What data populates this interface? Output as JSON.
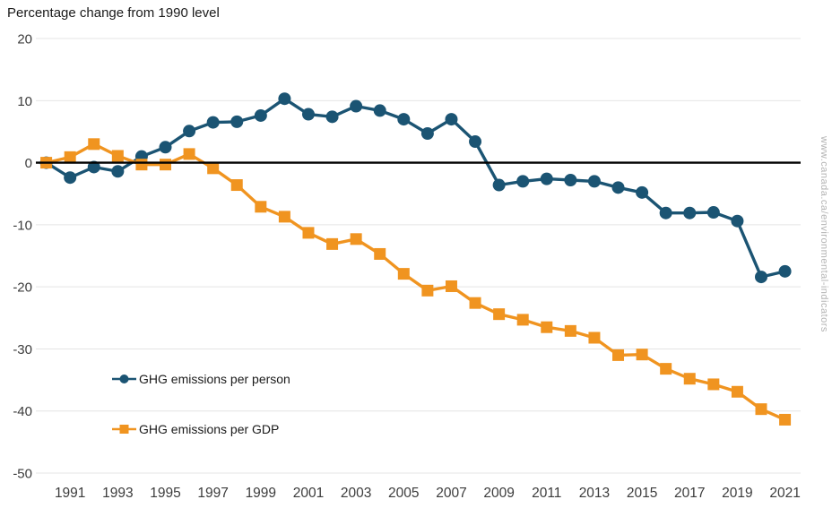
{
  "watermark": "www.canada.ca/environmental-indicators",
  "chart_data": {
    "type": "line",
    "title": "Percentage change from 1990 level",
    "xlabel": "",
    "ylabel": "Percentage change from 1990 level",
    "ylim": [
      -50,
      20
    ],
    "yticks": [
      20,
      10,
      0,
      -10,
      -20,
      -30,
      -40,
      -50
    ],
    "x_tick_labels": [
      "1991",
      "1993",
      "1995",
      "1997",
      "1999",
      "2001",
      "2003",
      "2005",
      "2007",
      "2009",
      "2011",
      "2013",
      "2015",
      "2017",
      "2019",
      "2021"
    ],
    "grid": true,
    "grid_color": "#e4e4e4",
    "zero_line_color": "#000000",
    "axis_label_color": "#3c3c3c",
    "legend_position": "inside lower-left",
    "years": [
      1990,
      1991,
      1992,
      1993,
      1994,
      1995,
      1996,
      1997,
      1998,
      1999,
      2000,
      2001,
      2002,
      2003,
      2004,
      2005,
      2006,
      2007,
      2008,
      2009,
      2010,
      2011,
      2012,
      2013,
      2014,
      2015,
      2016,
      2017,
      2018,
      2019,
      2020,
      2021
    ],
    "series": [
      {
        "name": "GHG emissions per person",
        "slug": "ghg-emissions-per-person",
        "color": "#1b5473",
        "marker": "circle",
        "values": [
          0.0,
          -2.4,
          -0.7,
          -1.4,
          1.0,
          2.5,
          5.1,
          6.5,
          6.6,
          7.6,
          10.3,
          7.8,
          7.4,
          9.1,
          8.4,
          7.0,
          4.7,
          7.0,
          3.4,
          -3.6,
          -3.0,
          -2.6,
          -2.8,
          -3.0,
          -4.0,
          -4.8,
          -8.1,
          -8.1,
          -8.0,
          -9.4,
          -18.4,
          -17.5
        ]
      },
      {
        "name": "GHG emissions per GDP",
        "slug": "ghg-emissions-per-gdp",
        "color": "#f09420",
        "marker": "square",
        "values": [
          0.0,
          0.9,
          3.0,
          1.1,
          -0.3,
          -0.3,
          1.4,
          -0.9,
          -3.6,
          -7.1,
          -8.7,
          -11.3,
          -13.1,
          -12.3,
          -14.7,
          -17.9,
          -20.6,
          -19.9,
          -22.6,
          -24.4,
          -25.3,
          -26.5,
          -27.1,
          -28.2,
          -31.0,
          -30.9,
          -33.2,
          -34.8,
          -35.7,
          -36.9,
          -39.7,
          -41.4
        ]
      }
    ]
  }
}
